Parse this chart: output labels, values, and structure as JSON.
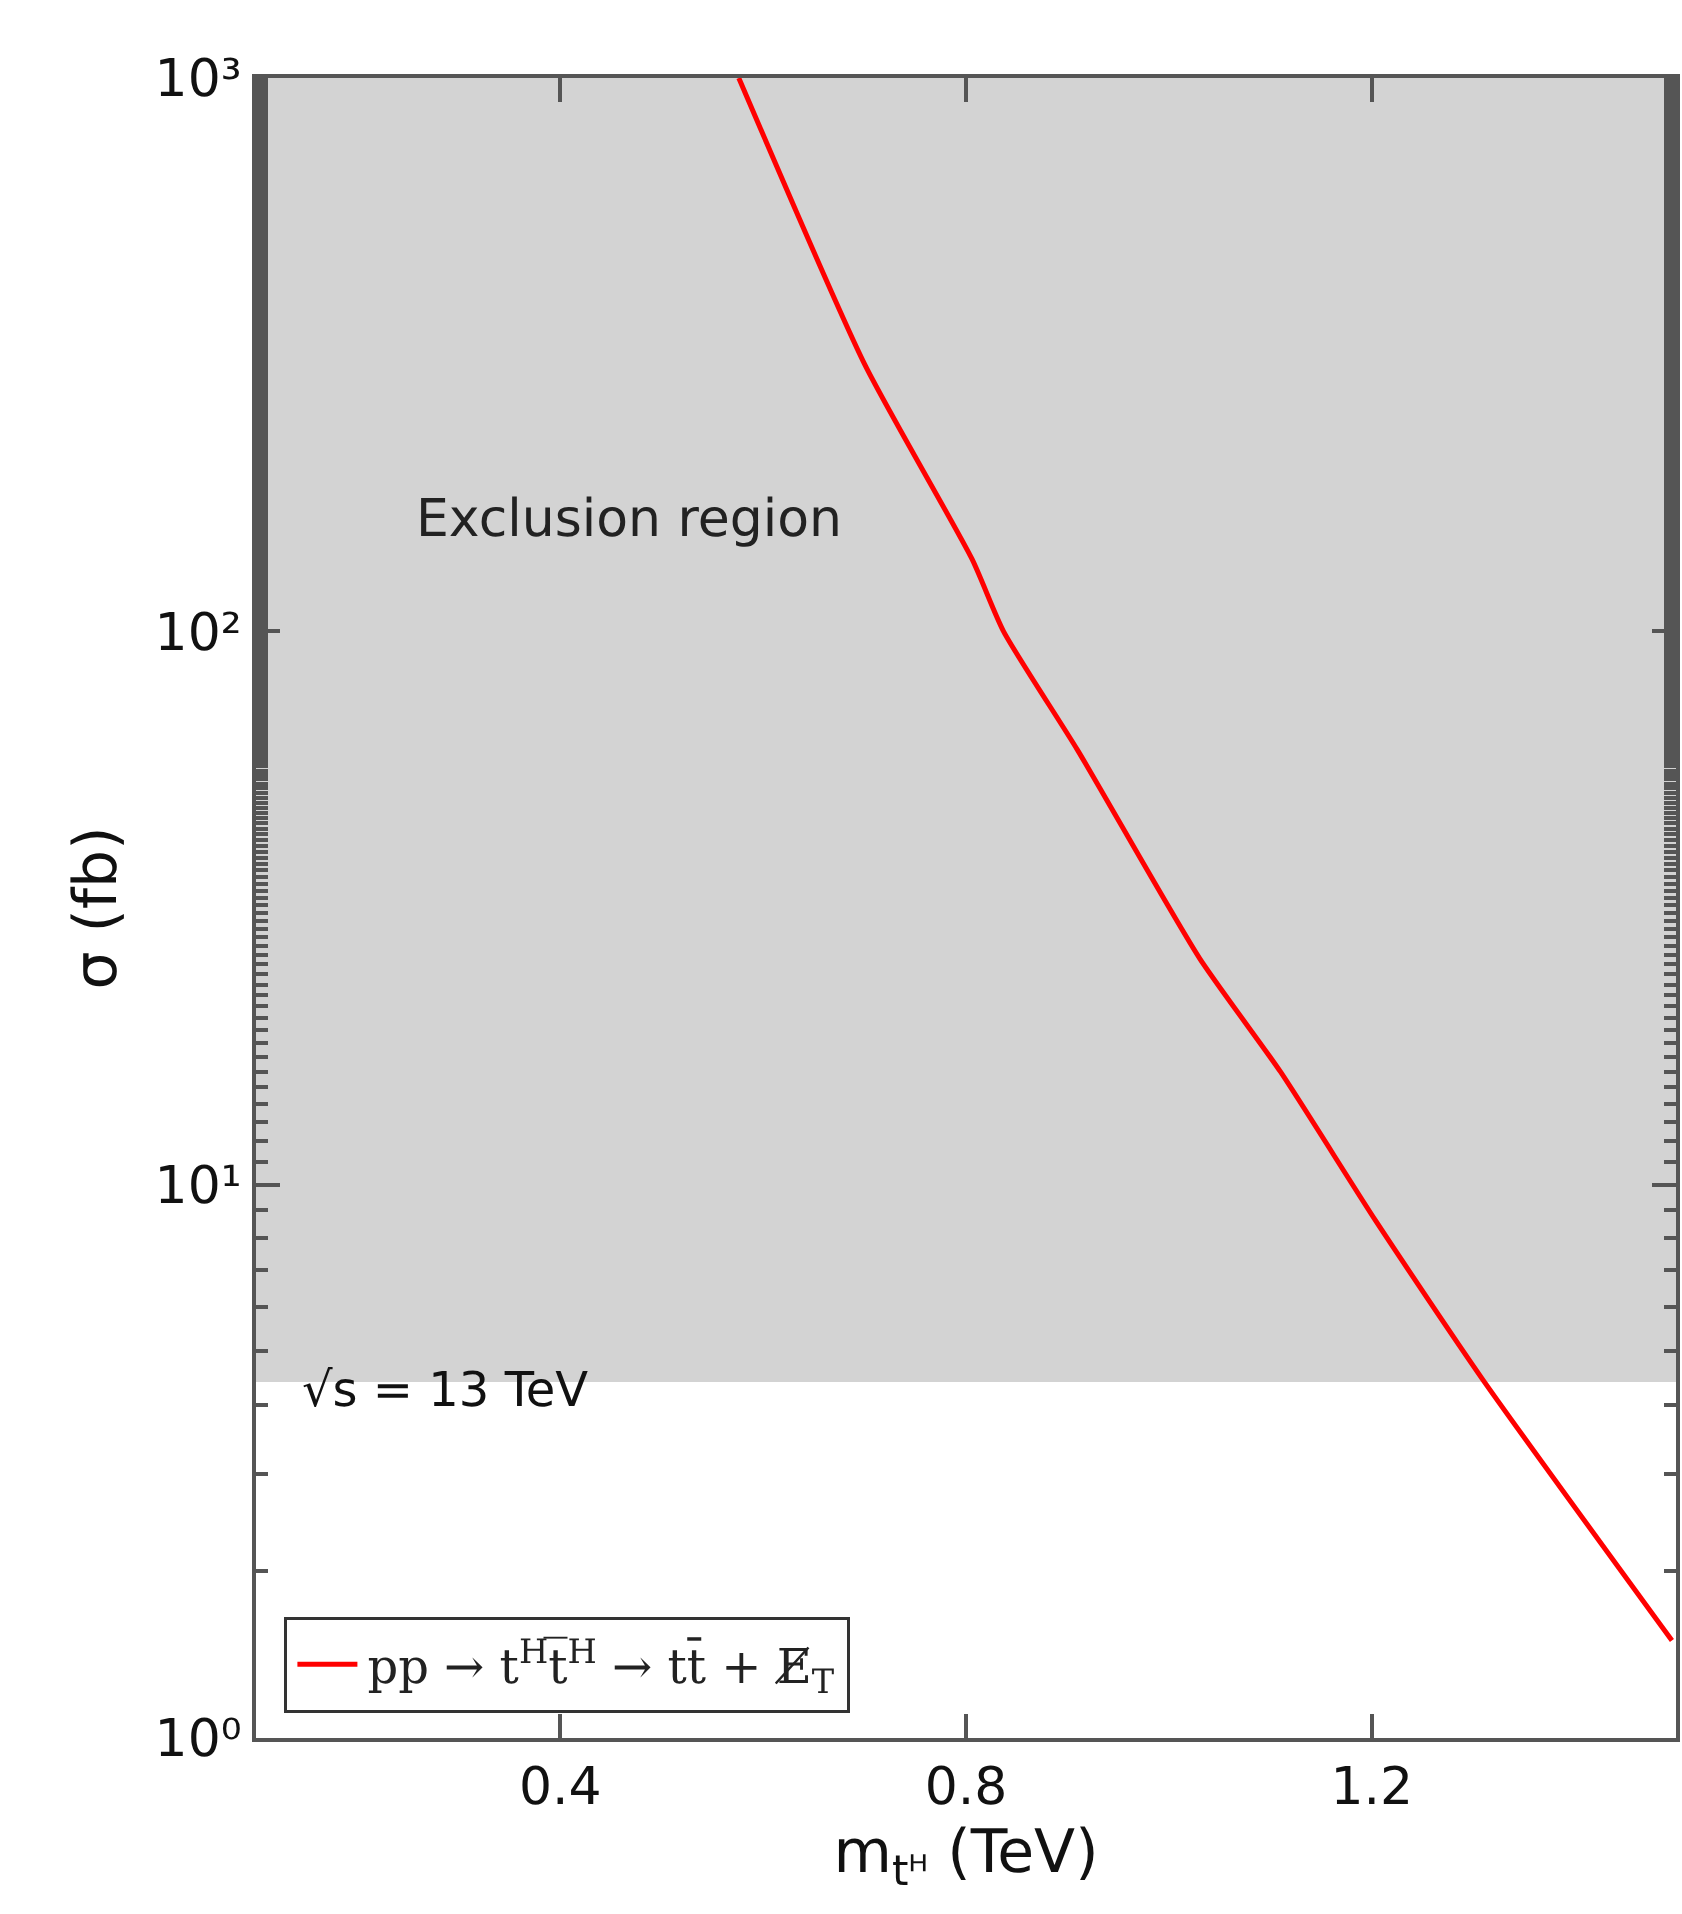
{
  "chart_data": {
    "type": "line",
    "xlabel": "m$_{tᴴ}$ (TeV)",
    "ylabel": "σ (fb)",
    "log": "y",
    "xlim": [
      0.1,
      1.5
    ],
    "xticks": [
      0.4,
      0.8,
      1.2
    ],
    "ylim": [
      1,
      1000
    ],
    "yticks": [
      {
        "value": 1,
        "label": "10⁰"
      },
      {
        "value": 10,
        "label": "10¹"
      },
      {
        "value": 100,
        "label": "10²"
      },
      {
        "value": 1000,
        "label": "10³"
      }
    ],
    "series": [
      {
        "name": "pp → t$^{H}$t̅$^{H}$ → tt̄ + E̸$_{T}$",
        "color": "#ff0000",
        "x": [
          0.576,
          0.7,
          0.806,
          0.837,
          0.91,
          1.03,
          1.11,
          1.204,
          1.31,
          1.496
        ],
        "values": [
          1000,
          304,
          135,
          100,
          61,
          25.7,
          16,
          8.6,
          4.43,
          1.5
        ]
      }
    ],
    "bands": [
      {
        "axis": "y",
        "from": 4.4,
        "to": 1000,
        "label": "Exclusion region",
        "color": "#d3d3d3"
      }
    ],
    "annotations": [
      "√s = 13 TeV"
    ],
    "legend": "bottom left",
    "grid": false,
    "line_style": "solid",
    "marker": "none"
  }
}
